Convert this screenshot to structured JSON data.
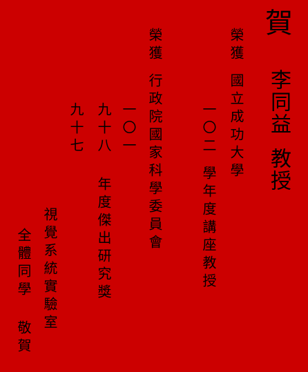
{
  "card": {
    "title": "賀",
    "honoree_name": "李同益",
    "honoree_title": "教授",
    "honor1_label": "榮獲",
    "honor1_university": "國立成功大學",
    "honor1_year": "一〇二",
    "honor1_award": "學年度講座教授",
    "honor2_label": "榮獲",
    "honor2_council": "行政院國家科學委員會",
    "honor2_year_a": "一〇一",
    "honor2_year_b": "九十八",
    "honor2_year_c": "九十七",
    "honor2_award": "年度傑出研究獎",
    "sender_lab": "視覺系統實驗室",
    "sender_colleagues": "全體同學",
    "sender_congrats": "敬賀",
    "background_color": "#cc0000"
  }
}
